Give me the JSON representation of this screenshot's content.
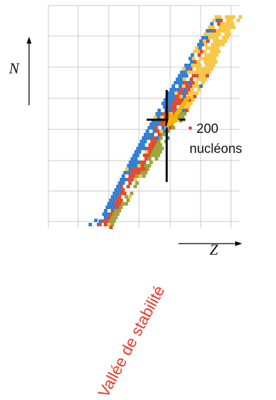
{
  "axes": {
    "vertical_label": "N",
    "horizontal_label": "Z"
  },
  "annotations": {
    "valley_label": "Vallée de stabilité",
    "nucleon_count": "200",
    "nucleon_word": "nucléons"
  },
  "colors": {
    "grid": "#c8c8c8",
    "valley_text": "#e8392b",
    "marker_dot": "#e8392b",
    "arrow": "#f4b400",
    "cross": "#000000",
    "nuclide_blue": "#2f7fd6",
    "nuclide_red": "#e04a2f",
    "nuclide_yellow": "#f7c745",
    "nuclide_olive": "#9aa53a"
  },
  "icons": {
    "axis_arrows": "arrow-icon",
    "crosshair": "crosshair-icon",
    "pointer": "pointer-arrow-icon"
  }
}
